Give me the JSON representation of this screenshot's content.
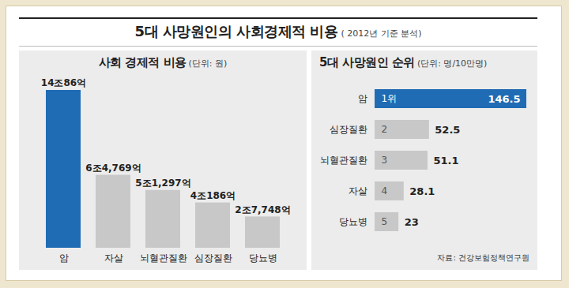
{
  "title": "5대 사망원인의 사회경제적 비용",
  "subtitle": "( 2012년 기준 분석)",
  "chart_data": [
    {
      "type": "bar",
      "title": "사회 경제적 비용",
      "subtitle": "(단위: 원)",
      "categories": [
        "암",
        "자살",
        "뇌혈관질환",
        "심장질환",
        "당뇨병"
      ],
      "values": [
        140086,
        64769,
        51297,
        40186,
        27748
      ],
      "value_labels": [
        "14조86억",
        "6조4,769억",
        "5조1,297억",
        "4조186억",
        "2조7,748억"
      ],
      "colors": [
        "#1f6cb4",
        "#c8c8c8",
        "#c8c8c8",
        "#c8c8c8",
        "#c8c8c8"
      ],
      "ylim": [
        0,
        140086
      ],
      "yticks": [],
      "grid": false,
      "data_labels": true,
      "tick_labels": "x"
    },
    {
      "type": "bar",
      "orientation": "horizontal",
      "title": "5대 사망원인 순위",
      "subtitle": "(단위: 명/10만명)",
      "categories": [
        "암",
        "심장질환",
        "뇌혈관질환",
        "자살",
        "당뇨병"
      ],
      "values": [
        146.5,
        52.5,
        51.1,
        28.1,
        23
      ],
      "rank_labels": [
        "1위",
        "2",
        "3",
        "4",
        "5"
      ],
      "colors": [
        "#1f6cb4",
        "#c8c8c8",
        "#c8c8c8",
        "#c8c8c8",
        "#c8c8c8"
      ],
      "xlim": [
        0,
        146.5
      ],
      "xticks": [],
      "grid": false,
      "data_labels": true,
      "tick_labels": "y",
      "annotations": [
        "자료: 건강보험정책연구원"
      ]
    }
  ]
}
